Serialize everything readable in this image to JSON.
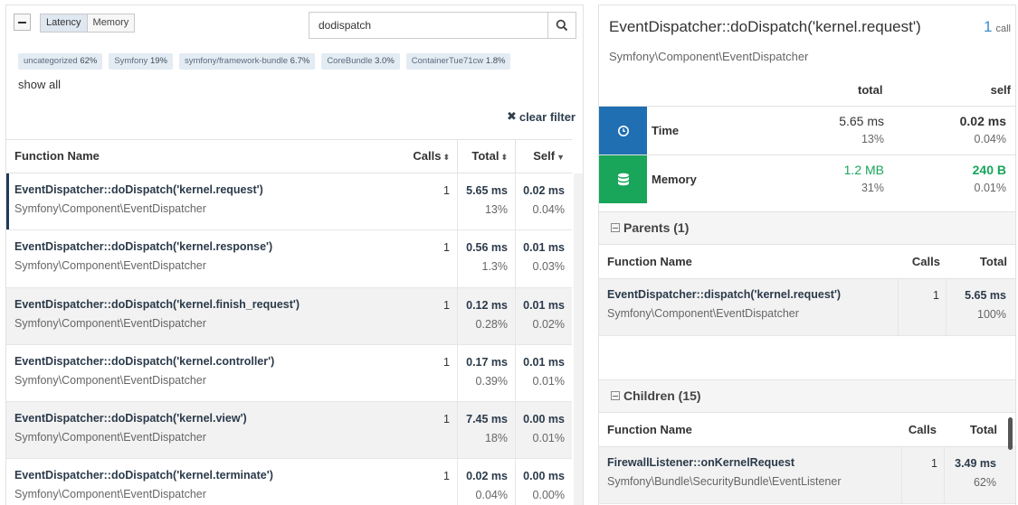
{
  "toolbar": {
    "latency_label": "Latency",
    "memory_label": "Memory",
    "search_value": "dodispatch"
  },
  "tags": [
    {
      "name": "uncategorized",
      "pct": "62%"
    },
    {
      "name": "Symfony",
      "pct": "19%"
    },
    {
      "name": "symfony/framework-bundle",
      "pct": "6.7%"
    },
    {
      "name": "CoreBundle",
      "pct": "3.0%"
    },
    {
      "name": "ContainerTue71cw",
      "pct": "1.8%"
    }
  ],
  "show_all": "show all",
  "clear_filter": "clear filter",
  "table": {
    "headers": {
      "name": "Function Name",
      "calls": "Calls",
      "total": "Total",
      "self": "Self"
    },
    "rows": [
      {
        "fn": "EventDispatcher::doDispatch('kernel.request')",
        "ns": "Symfony\\Component\\EventDispatcher",
        "calls": "1",
        "total": "5.65 ms",
        "total_pct": "13%",
        "self": "0.02 ms",
        "self_pct": "0.04%"
      },
      {
        "fn": "EventDispatcher::doDispatch('kernel.response')",
        "ns": "Symfony\\Component\\EventDispatcher",
        "calls": "1",
        "total": "0.56 ms",
        "total_pct": "1.3%",
        "self": "0.01 ms",
        "self_pct": "0.03%"
      },
      {
        "fn": "EventDispatcher::doDispatch('kernel.finish_request')",
        "ns": "Symfony\\Component\\EventDispatcher",
        "calls": "1",
        "total": "0.12 ms",
        "total_pct": "0.28%",
        "self": "0.01 ms",
        "self_pct": "0.02%"
      },
      {
        "fn": "EventDispatcher::doDispatch('kernel.controller')",
        "ns": "Symfony\\Component\\EventDispatcher",
        "calls": "1",
        "total": "0.17 ms",
        "total_pct": "0.39%",
        "self": "0.01 ms",
        "self_pct": "0.01%"
      },
      {
        "fn": "EventDispatcher::doDispatch('kernel.view')",
        "ns": "Symfony\\Component\\EventDispatcher",
        "calls": "1",
        "total": "7.45 ms",
        "total_pct": "18%",
        "self": "0.00 ms",
        "self_pct": "0.01%"
      },
      {
        "fn": "EventDispatcher::doDispatch('kernel.terminate')",
        "ns": "Symfony\\Component\\EventDispatcher",
        "calls": "1",
        "total": "0.02 ms",
        "total_pct": "0.04%",
        "self": "0.00 ms",
        "self_pct": "0.00%"
      }
    ]
  },
  "detail": {
    "title": "EventDispatcher::doDispatch('kernel.request')",
    "calls_count": "1",
    "calls_label": "call",
    "ns": "Symfony\\Component\\EventDispatcher",
    "col_total": "total",
    "col_self": "self",
    "time": {
      "label": "Time",
      "total": "5.65 ms",
      "total_pct": "13%",
      "self": "0.02 ms",
      "self_pct": "0.04%",
      "color": "#1f6fb2"
    },
    "memory": {
      "label": "Memory",
      "total": "1.2 MB",
      "total_pct": "31%",
      "self": "240 B",
      "self_pct": "0.01%",
      "color": "#19a55a"
    },
    "parents": {
      "title": "Parents (1)",
      "headers": {
        "name": "Function Name",
        "calls": "Calls",
        "total": "Total"
      },
      "rows": [
        {
          "fn": "EventDispatcher::dispatch('kernel.request')",
          "ns": "Symfony\\Component\\EventDispatcher",
          "calls": "1",
          "total": "5.65 ms",
          "pct": "100%"
        }
      ]
    },
    "children": {
      "title": "Children (15)",
      "headers": {
        "name": "Function Name",
        "calls": "Calls",
        "total": "Total"
      },
      "rows": [
        {
          "fn": "FirewallListener::onKernelRequest",
          "ns": "Symfony\\Bundle\\SecurityBundle\\EventListener",
          "calls": "1",
          "total": "3.49 ms",
          "pct": "62%"
        }
      ]
    }
  }
}
